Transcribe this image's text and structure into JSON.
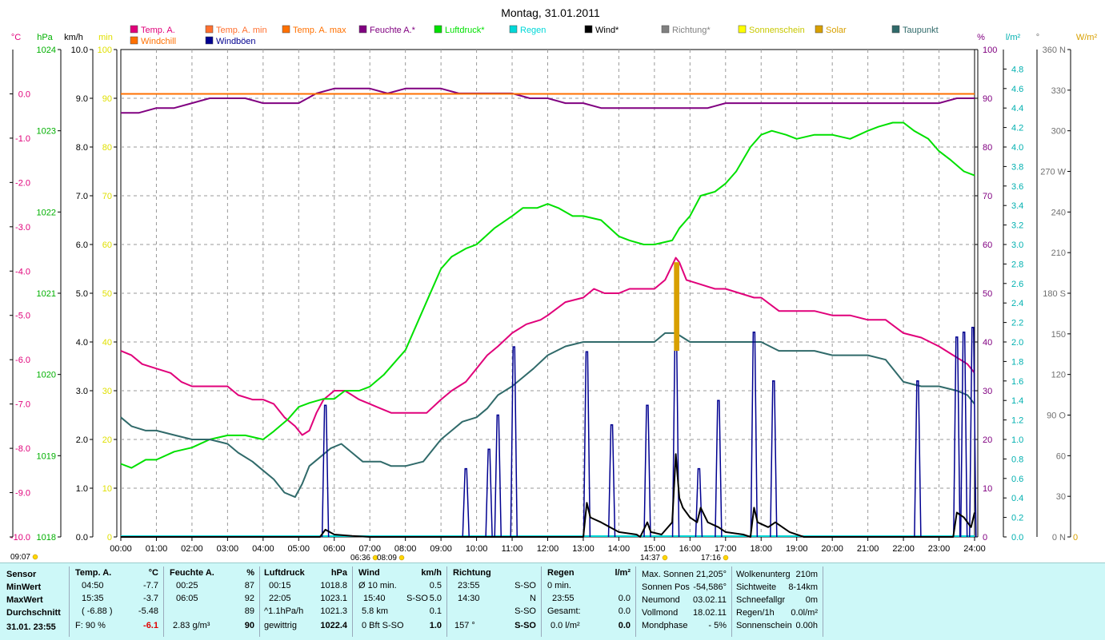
{
  "title": "Montag, 31.01.2011",
  "legend": [
    {
      "label": "Temp. A.",
      "color": "#e0007a"
    },
    {
      "label": "Temp. A. min",
      "color": "#ff7030"
    },
    {
      "label": "Temp. A. max",
      "color": "#ff7000"
    },
    {
      "label": "Feuchte A.*",
      "color": "#800080"
    },
    {
      "label": "Luftdruck*",
      "color": "#00e000"
    },
    {
      "label": "Regen",
      "color": "#00d8d8"
    },
    {
      "label": "Wind*",
      "color": "#000000"
    },
    {
      "label": "Richtung*",
      "color": "#808080"
    },
    {
      "label": "Sonnenschein",
      "color": "#ffff00"
    },
    {
      "label": "Solar",
      "color": "#d8a000"
    },
    {
      "label": "Taupunkt",
      "color": "#306a6a"
    },
    {
      "label": "Windchill",
      "color": "#ff7000"
    },
    {
      "label": "Windböen",
      "color": "#000090"
    }
  ],
  "axes": {
    "temp": {
      "unit": "°C",
      "ticks": [
        "0.0",
        "-1.0",
        "-2.0",
        "-3.0",
        "-4.0",
        "-5.0",
        "-6.0",
        "-7.0",
        "-8.0",
        "-9.0",
        "-10.0"
      ],
      "min": -10,
      "max": 1,
      "color": "#e0007a"
    },
    "pressure": {
      "unit": "hPa",
      "ticks": [
        "1024",
        "1023",
        "1022",
        "1021",
        "1020",
        "1019",
        "1018"
      ],
      "min": 1018,
      "max": 1024,
      "color": "#00b000"
    },
    "wind": {
      "unit": "km/h",
      "ticks": [
        "10.0",
        "9.0",
        "8.0",
        "7.0",
        "6.0",
        "5.0",
        "4.0",
        "3.0",
        "2.0",
        "1.0",
        "0.0"
      ],
      "min": 0,
      "max": 10,
      "color": "#000000"
    },
    "min": {
      "unit": "min",
      "ticks": [
        "100",
        "90",
        "80",
        "70",
        "60",
        "50",
        "40",
        "30",
        "20",
        "10",
        "0"
      ],
      "color": "#e0e000"
    },
    "humidity": {
      "unit": "%",
      "ticks": [
        "100",
        "90",
        "80",
        "70",
        "60",
        "50",
        "40",
        "30",
        "20",
        "10",
        "0"
      ],
      "color": "#800080"
    },
    "rain": {
      "unit": "l/m²",
      "ticks": [
        "4.8",
        "4.6",
        "4.4",
        "4.2",
        "4.0",
        "3.8",
        "3.6",
        "3.4",
        "3.2",
        "3.0",
        "2.8",
        "2.6",
        "2.4",
        "2.2",
        "2.0",
        "1.8",
        "1.6",
        "1.4",
        "1.2",
        "1.0",
        "0.8",
        "0.6",
        "0.4",
        "0.2",
        "0.0"
      ],
      "color": "#00b0b0"
    },
    "direction": {
      "unit": "°",
      "ticks": [
        "360 N",
        "330",
        "300",
        "270 W",
        "240",
        "210",
        "180 S",
        "150",
        "120",
        "90  O",
        "60",
        "30",
        "0  N"
      ],
      "color": "#707070"
    },
    "solar": {
      "unit": "W/m²",
      "ticks": [
        "0"
      ],
      "color": "#d8a000"
    },
    "time_labels": [
      "00:00",
      "01:00",
      "02:00",
      "03:00",
      "04:00",
      "05:00",
      "06:00",
      "07:00",
      "08:00",
      "09:00",
      "10:00",
      "11:00",
      "12:00",
      "13:00",
      "14:00",
      "15:00",
      "16:00",
      "17:00",
      "18:00",
      "19:00",
      "20:00",
      "21:00",
      "22:00",
      "23:00",
      "24:00"
    ],
    "time_markers": [
      "09:07",
      "06:36",
      "08:09",
      "14:37",
      "17:16"
    ]
  },
  "chart_data": {
    "type": "line",
    "title": "Montag, 31.01.2011",
    "x_unit": "hours",
    "xlim": [
      0,
      24
    ],
    "series": [
      {
        "name": "Temp. A.",
        "axis": "temp",
        "color": "#e0007a",
        "x": [
          0,
          0.3,
          0.6,
          1,
          1.4,
          1.7,
          2,
          2.5,
          3,
          3.3,
          3.7,
          4,
          4.3,
          4.6,
          4.9,
          5.1,
          5.3,
          5.5,
          5.7,
          6,
          6.3,
          6.5,
          6.7,
          7,
          7.3,
          7.6,
          8,
          8.3,
          8.6,
          9,
          9.3,
          9.7,
          10,
          10.3,
          10.6,
          11,
          11.4,
          11.8,
          12,
          12.5,
          13,
          13.3,
          13.6,
          14,
          14.3,
          14.6,
          15,
          15.3,
          15.6,
          15.7,
          15.9,
          16.3,
          16.7,
          17,
          17.4,
          17.8,
          18,
          18.5,
          19,
          19.5,
          20,
          20.5,
          21,
          21.5,
          22,
          22.5,
          23,
          23.4,
          23.8,
          24
        ],
        "y": [
          -5.8,
          -5.9,
          -6.1,
          -6.2,
          -6.3,
          -6.5,
          -6.6,
          -6.6,
          -6.6,
          -6.8,
          -6.9,
          -6.9,
          -7.0,
          -7.3,
          -7.5,
          -7.7,
          -7.6,
          -7.2,
          -6.9,
          -6.7,
          -6.7,
          -6.8,
          -6.9,
          -7.0,
          -7.1,
          -7.2,
          -7.2,
          -7.2,
          -7.2,
          -6.9,
          -6.7,
          -6.5,
          -6.2,
          -5.9,
          -5.7,
          -5.4,
          -5.2,
          -5.1,
          -5.0,
          -4.7,
          -4.6,
          -4.4,
          -4.5,
          -4.5,
          -4.4,
          -4.4,
          -4.4,
          -4.2,
          -3.7,
          -3.8,
          -4.2,
          -4.3,
          -4.4,
          -4.4,
          -4.5,
          -4.6,
          -4.6,
          -4.9,
          -4.9,
          -4.9,
          -5.0,
          -5.0,
          -5.1,
          -5.1,
          -5.4,
          -5.5,
          -5.7,
          -5.9,
          -6.1,
          -6.3
        ]
      },
      {
        "name": "Feuchte A.*",
        "axis": "humidity",
        "color": "#800080",
        "x": [
          0,
          0.5,
          1,
          1.5,
          2,
          2.5,
          3,
          3.5,
          4,
          4.5,
          5,
          5.5,
          6,
          6.5,
          7,
          7.5,
          8,
          8.5,
          9,
          9.5,
          10,
          10.5,
          11,
          11.5,
          12,
          12.5,
          13,
          13.5,
          14,
          14.5,
          15,
          15.5,
          16,
          16.5,
          17,
          18,
          19,
          20,
          21,
          22,
          23,
          23.5,
          24
        ],
        "y": [
          87,
          87,
          88,
          88,
          89,
          90,
          90,
          90,
          89,
          89,
          89,
          91,
          92,
          92,
          92,
          91,
          92,
          92,
          92,
          91,
          91,
          91,
          91,
          90,
          90,
          89,
          89,
          88,
          88,
          88,
          88,
          88,
          88,
          88,
          89,
          89,
          89,
          89,
          89,
          89,
          89,
          90,
          90
        ]
      },
      {
        "name": "Luftdruck*",
        "axis": "pressure",
        "color": "#00e000",
        "x": [
          0,
          0.3,
          0.7,
          1,
          1.5,
          2,
          2.5,
          3,
          3.5,
          4,
          4.3,
          4.7,
          5,
          5.3,
          5.7,
          6,
          6.3,
          6.7,
          7,
          7.4,
          7.8,
          8,
          8.3,
          8.6,
          9,
          9.3,
          9.7,
          10,
          10.5,
          11,
          11.3,
          11.7,
          12,
          12.3,
          12.7,
          13,
          13.5,
          14,
          14.3,
          14.7,
          15,
          15.5,
          15.7,
          16,
          16.3,
          16.7,
          17,
          17.3,
          17.7,
          18,
          18.3,
          18.7,
          19,
          19.5,
          20,
          20.5,
          21,
          21.3,
          21.7,
          22,
          22.3,
          22.7,
          23,
          23.3,
          23.7,
          24
        ],
        "y": [
          1018.9,
          1018.85,
          1018.95,
          1018.95,
          1019.05,
          1019.1,
          1019.2,
          1019.25,
          1019.25,
          1019.2,
          1019.3,
          1019.45,
          1019.6,
          1019.65,
          1019.7,
          1019.7,
          1019.8,
          1019.8,
          1019.85,
          1020.0,
          1020.2,
          1020.3,
          1020.6,
          1020.9,
          1021.3,
          1021.45,
          1021.55,
          1021.6,
          1021.8,
          1021.95,
          1022.05,
          1022.05,
          1022.1,
          1022.05,
          1021.95,
          1021.95,
          1021.9,
          1021.7,
          1021.65,
          1021.6,
          1021.6,
          1021.65,
          1021.8,
          1021.95,
          1022.2,
          1022.25,
          1022.35,
          1022.5,
          1022.8,
          1022.95,
          1023.0,
          1022.95,
          1022.9,
          1022.95,
          1022.95,
          1022.9,
          1023.0,
          1023.05,
          1023.1,
          1023.1,
          1023.0,
          1022.9,
          1022.75,
          1022.65,
          1022.5,
          1022.45
        ]
      },
      {
        "name": "Taupunkt",
        "axis": "temp",
        "color": "#306a6a",
        "x": [
          0,
          0.3,
          0.7,
          1,
          1.5,
          2,
          2.5,
          3,
          3.3,
          3.7,
          4,
          4.3,
          4.6,
          4.9,
          5.1,
          5.3,
          5.6,
          5.9,
          6.2,
          6.5,
          6.8,
          7,
          7.3,
          7.6,
          8,
          8.5,
          9,
          9.3,
          9.6,
          10,
          10.3,
          10.6,
          11,
          11.3,
          11.6,
          12,
          12.5,
          13,
          13.5,
          14,
          14.5,
          15,
          15.3,
          15.6,
          16,
          16.5,
          17,
          17.5,
          18,
          18.5,
          19,
          19.5,
          20,
          20.5,
          21,
          21.5,
          22,
          22.5,
          23,
          23.5,
          23.8,
          24
        ],
        "y": [
          -7.3,
          -7.5,
          -7.6,
          -7.6,
          -7.7,
          -7.8,
          -7.8,
          -7.9,
          -8.1,
          -8.3,
          -8.5,
          -8.7,
          -9.0,
          -9.1,
          -8.8,
          -8.4,
          -8.2,
          -8.0,
          -7.9,
          -8.1,
          -8.3,
          -8.3,
          -8.3,
          -8.4,
          -8.4,
          -8.3,
          -7.8,
          -7.6,
          -7.4,
          -7.3,
          -7.1,
          -6.8,
          -6.6,
          -6.4,
          -6.2,
          -5.9,
          -5.7,
          -5.6,
          -5.6,
          -5.6,
          -5.6,
          -5.6,
          -5.4,
          -5.4,
          -5.6,
          -5.6,
          -5.6,
          -5.6,
          -5.6,
          -5.8,
          -5.8,
          -5.8,
          -5.9,
          -5.9,
          -5.9,
          -6.0,
          -6.5,
          -6.6,
          -6.6,
          -6.7,
          -6.8,
          -7.0
        ]
      },
      {
        "name": "Windböen",
        "axis": "wind",
        "color": "#000090",
        "kind": "spikes",
        "x": [
          5.75,
          9.7,
          10.35,
          10.6,
          11.05,
          13.1,
          13.8,
          14.8,
          15.6,
          16.25,
          16.8,
          17.8,
          18.35,
          22.4,
          23.5,
          23.7,
          23.95
        ],
        "y": [
          2.7,
          1.4,
          1.8,
          2.5,
          3.9,
          3.8,
          2.3,
          2.7,
          4.2,
          1.4,
          2.8,
          4.2,
          3.2,
          3.2,
          4.1,
          4.2,
          4.3
        ]
      },
      {
        "name": "Wind*",
        "axis": "wind",
        "color": "#000000",
        "x": [
          0,
          5.6,
          5.75,
          6.0,
          6.5,
          7.0,
          7.1,
          13.0,
          13.1,
          13.2,
          13.5,
          14,
          14.5,
          14.6,
          14.8,
          14.9,
          15.2,
          15.5,
          15.6,
          15.7,
          15.8,
          16,
          16.2,
          16.3,
          16.5,
          16.8,
          17,
          17.5,
          17.7,
          17.8,
          17.9,
          18.2,
          18.4,
          18.8,
          19.2,
          23.4,
          23.5,
          23.7,
          23.9,
          24
        ],
        "y": [
          0,
          0,
          0.15,
          0.05,
          0.02,
          0,
          0,
          0,
          0.7,
          0.4,
          0.3,
          0.1,
          0.05,
          0,
          0.3,
          0.1,
          0.05,
          0.3,
          1.7,
          0.8,
          0.6,
          0.4,
          0.3,
          0.6,
          0.3,
          0.2,
          0.1,
          0.05,
          0,
          0.6,
          0.3,
          0.2,
          0.3,
          0.1,
          0,
          0,
          0.5,
          0.4,
          0.2,
          0.5
        ]
      },
      {
        "name": "Solar",
        "axis": "temp",
        "color": "#d8a000",
        "kind": "bar",
        "x": [
          15.55,
          15.7
        ],
        "y": [
          -3.8,
          -5.8
        ]
      },
      {
        "name": "Windchill",
        "axis": "temp",
        "color": "#ff7000",
        "kind": "flat",
        "value": 0
      }
    ]
  },
  "panel": {
    "sensor": {
      "header": "Sensor",
      "rows": [
        "MinWert",
        "MaxWert",
        "Durchschnitt"
      ],
      "footer": "31.01. 23:55"
    },
    "temp": {
      "header": "Temp. A.",
      "unit": "°C",
      "rows": [
        [
          "04:50",
          "-7.7"
        ],
        [
          "15:35",
          "-3.7"
        ],
        [
          "( -6.88 )",
          "-5.48"
        ]
      ],
      "footer_left": "F: 90 %",
      "footer_right": "-6.1"
    },
    "feuchte": {
      "header": "Feuchte A.",
      "unit": "%",
      "rows": [
        [
          "00:25",
          "87"
        ],
        [
          "06:05",
          "92"
        ],
        [
          "",
          "89"
        ]
      ],
      "footer_left": "2.83 g/m³",
      "footer_right": "90"
    },
    "luftdruck": {
      "header": "Luftdruck",
      "unit": "hPa",
      "rows": [
        [
          "00:15",
          "1018.8"
        ],
        [
          "22:05",
          "1023.1"
        ],
        [
          "^1.1hPa/h",
          "1021.3"
        ]
      ],
      "footer_left": "gewittrig",
      "footer_right": "1022.4"
    },
    "wind": {
      "header": "Wind",
      "unit": "km/h",
      "rows": [
        [
          "Ø 10 min.",
          "",
          "0.5"
        ],
        [
          "15:40",
          "S-SO",
          "5.0"
        ],
        [
          "5.8 km",
          "",
          "0.1"
        ]
      ],
      "footer_left": "0 Bft S-SO",
      "footer_right": "1.0"
    },
    "richtung": {
      "header": "Richtung",
      "rows": [
        [
          "23:55",
          "S-SO"
        ],
        [
          "14:30",
          "N"
        ],
        [
          "",
          "S-SO"
        ]
      ],
      "footer_left": "157 °",
      "footer_right": "S-SO"
    },
    "regen": {
      "header": "Regen",
      "unit": "l/m²",
      "rows": [
        [
          "0 min.",
          ""
        ],
        [
          "23:55",
          "0.0"
        ],
        [
          "Gesamt:",
          "0.0"
        ]
      ],
      "footer_left": "0.0 l/m²",
      "footer_right": "0.0"
    },
    "astro": {
      "rows": [
        [
          "Max. Sonnen",
          "21,205°"
        ],
        [
          "Sonnen Pos",
          "-54,586°"
        ],
        [
          "Neumond",
          "03.02.11"
        ],
        [
          "Vollmond",
          "18.02.11"
        ],
        [
          "Mondphase",
          "- 5%"
        ]
      ]
    },
    "extra": {
      "rows": [
        [
          "Wolkenunterg",
          "210m"
        ],
        [
          "Sichtweite",
          "8-14km"
        ],
        [
          "Schneefallgr",
          "0m"
        ],
        [
          "Regen/1h",
          "0.0l/m²"
        ],
        [
          "Sonnenschein",
          "0.00h"
        ]
      ]
    }
  }
}
